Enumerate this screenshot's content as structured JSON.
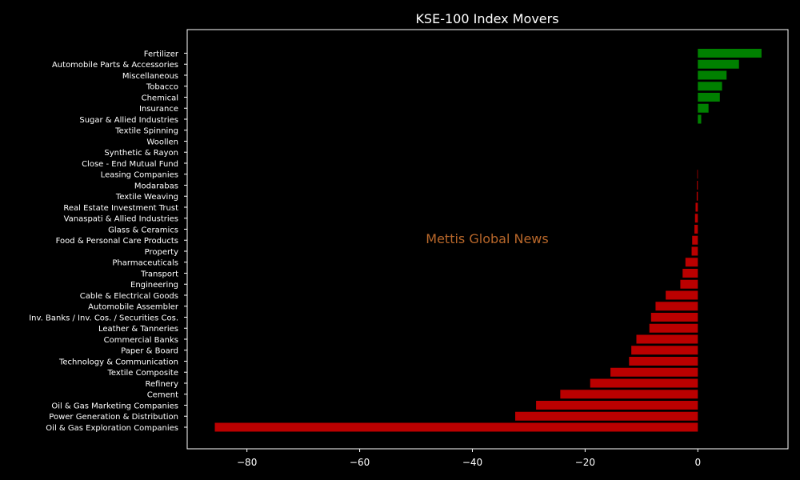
{
  "chart_data": {
    "type": "bar",
    "orientation": "horizontal",
    "title": "KSE-100 Index Movers",
    "watermark": "Mettis Global News",
    "xlabel": "",
    "ylabel": "",
    "xlim": [
      -90.6,
      16.0
    ],
    "xticks": [
      -80,
      -60,
      -40,
      -20,
      0
    ],
    "xtick_labels": [
      "−80",
      "−60",
      "−40",
      "−20",
      "0"
    ],
    "grid": false,
    "legend": "none",
    "colors": {
      "positive": "#008000",
      "negative": "#bb0000",
      "background": "#000000",
      "axes": "#ffffff",
      "watermark": "#b8672a"
    },
    "categories": [
      "Fertilizer",
      "Automobile Parts & Accessories",
      "Miscellaneous",
      "Tobacco",
      "Chemical",
      "Insurance",
      "Sugar & Allied Industries",
      "Textile Spinning",
      "Woollen",
      "Synthetic & Rayon",
      "Close - End Mutual Fund",
      "Leasing Companies",
      "Modarabas",
      "Textile Weaving",
      "Real Estate Investment Trust",
      "Vanaspati & Allied Industries",
      "Glass & Ceramics",
      "Food & Personal Care Products",
      "Property",
      "Pharmaceuticals",
      "Transport",
      "Engineering",
      "Cable & Electrical Goods",
      "Automobile Assembler",
      "Inv. Banks / Inv. Cos. / Securities Cos.",
      "Leather & Tanneries",
      "Commercial Banks",
      "Paper & Board",
      "Technology & Communication",
      "Textile Composite",
      "Refinery",
      "Cement",
      "Oil & Gas Marketing Companies",
      "Power Generation & Distribution",
      "Oil & Gas Exploration Companies"
    ],
    "values": [
      11.3,
      7.3,
      5.1,
      4.3,
      3.9,
      1.9,
      0.6,
      0,
      0,
      0,
      0,
      -0.1,
      -0.15,
      -0.2,
      -0.4,
      -0.5,
      -0.6,
      -1.0,
      -1.1,
      -2.2,
      -2.7,
      -3.1,
      -5.7,
      -7.5,
      -8.3,
      -8.6,
      -10.9,
      -11.8,
      -12.2,
      -15.5,
      -19.1,
      -24.4,
      -28.7,
      -32.4,
      -85.7
    ]
  }
}
